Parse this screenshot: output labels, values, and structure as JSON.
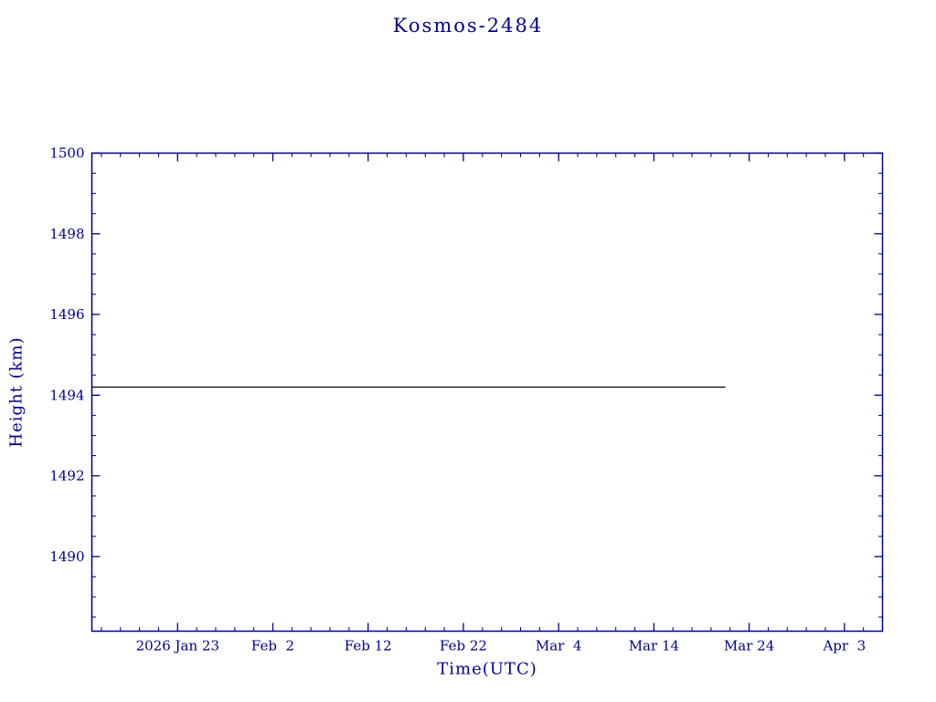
{
  "chart_data": {
    "type": "line",
    "title": "Kosmos-2484",
    "xlabel": "Time(UTC)",
    "ylabel": "Height (km)",
    "axis_color": "#00008B",
    "line_color": "#000000",
    "x_range_days": [
      0,
      83
    ],
    "x_major_days": [
      9,
      19,
      29,
      39,
      49,
      59,
      69,
      79
    ],
    "x_tick_labels": [
      "2026 Jan 23",
      "Feb  2",
      "Feb 12",
      "Feb 22",
      "Mar  4",
      "Mar 14",
      "Mar 24",
      "Apr  3"
    ],
    "x_minor_step_days": 2,
    "ylim": [
      1488.15,
      1500
    ],
    "y_ticks": [
      1490,
      1492,
      1494,
      1496,
      1498,
      1500
    ],
    "y_minor_step": 0.5,
    "grid": false,
    "legend": "none",
    "series": [
      {
        "name": "height",
        "x_days": [
          0,
          66.5
        ],
        "values": [
          1494.2,
          1494.2
        ]
      }
    ]
  }
}
